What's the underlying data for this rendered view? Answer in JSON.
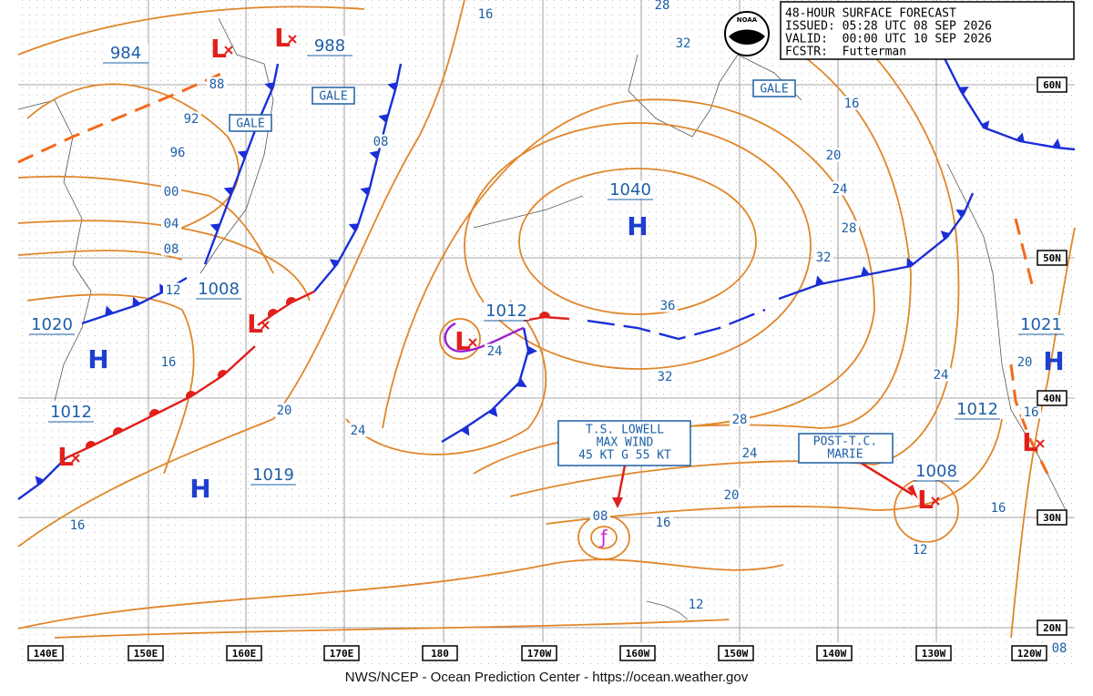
{
  "header": {
    "lines": [
      "48-HOUR SURFACE FORECAST",
      "ISSUED: 05:28 UTC 08 SEP 2026",
      "VALID:  00:00 UTC 10 SEP 2026",
      "FCSTR:  Futterman"
    ]
  },
  "logo_text": "NOAA",
  "footer": "NWS/NCEP - Ocean Prediction Center - https://ocean.weather.gov",
  "longitudes": [
    "140E",
    "150E",
    "160E",
    "170E",
    "180",
    "170W",
    "160W",
    "150W",
    "140W",
    "130W",
    "120W"
  ],
  "latitudes": [
    "60N",
    "50N",
    "40N",
    "30N",
    "20N"
  ],
  "pressure_values": [
    "984",
    "988",
    "1008",
    "1020",
    "1012",
    "1019",
    "1040",
    "1012",
    "1021",
    "1012",
    "1008"
  ],
  "center_letters": [
    "H",
    "H",
    "H",
    "H",
    "L",
    "L",
    "L",
    "L",
    "L",
    "L",
    "L"
  ],
  "isobar_labels": [
    "16",
    "28",
    "32",
    "88",
    "92",
    "96",
    "08",
    "00",
    "04",
    "08",
    "12",
    "16",
    "20",
    "24",
    "24",
    "36",
    "32",
    "28",
    "24",
    "20",
    "16",
    "08",
    "16",
    "12",
    "16",
    "20",
    "24",
    "28",
    "32",
    "24",
    "20",
    "16",
    "16",
    "12",
    "08"
  ],
  "warnings": [
    "GALE",
    "GALE",
    "GALE"
  ],
  "storms": [
    {
      "lines": [
        "T.S. LOWELL",
        "MAX WIND",
        "45 KT G 55 KT"
      ]
    },
    {
      "lines": [
        "POST-T.C.",
        "MARIE"
      ]
    }
  ]
}
